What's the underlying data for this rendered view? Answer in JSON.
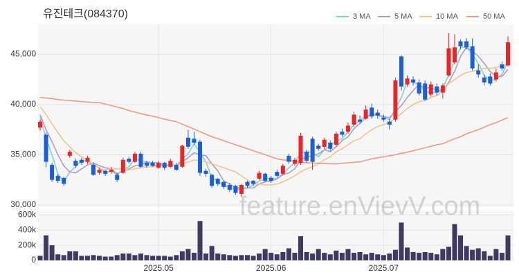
{
  "chart_data": {
    "type": "candlestick",
    "title": "유진테크(084370)",
    "watermark": "feature.enVievV.com",
    "up_color": "#e8262a",
    "down_color": "#1a5fd6",
    "grid": true,
    "legend": "top-right",
    "categories": [
      null,
      null,
      null,
      null,
      null,
      null,
      null,
      null,
      null,
      null,
      null,
      null,
      null,
      null,
      null,
      null,
      null,
      null,
      null,
      null,
      "2025.05",
      null,
      null,
      null,
      null,
      null,
      null,
      null,
      null,
      null,
      null,
      null,
      null,
      null,
      null,
      null,
      null,
      null,
      null,
      "2025.06",
      null,
      null,
      null,
      null,
      null,
      null,
      null,
      null,
      null,
      null,
      null,
      null,
      null,
      null,
      null,
      null,
      null,
      null,
      "2025.07",
      null,
      null,
      null,
      null,
      null,
      null,
      null,
      null,
      null,
      null,
      null,
      null,
      null,
      null,
      null,
      null,
      null,
      null,
      null,
      null,
      null
    ],
    "open": [
      37700,
      37000,
      34000,
      32900,
      32700,
      34900,
      34400,
      34500,
      34300,
      34000,
      33200,
      33400,
      33300,
      33000,
      33200,
      34600,
      34300,
      35100,
      34200,
      34200,
      33700,
      34200,
      33800,
      34000,
      33800,
      36700,
      36600,
      36300,
      33400,
      33000,
      32600,
      32300,
      32000,
      31900,
      31100,
      32300,
      32400,
      32600,
      33100,
      32700,
      33300,
      33100,
      34900,
      34100,
      34200,
      35300,
      36600,
      35900,
      35800,
      36200,
      36000,
      37300,
      37300,
      38000,
      38500,
      38600,
      39700,
      39200,
      38700,
      38300,
      38500,
      44800,
      42000,
      42500,
      42200,
      42100,
      41000,
      41800,
      41200,
      42900,
      44200,
      46300,
      46300,
      45800,
      43400,
      42700,
      42800,
      42500,
      44000,
      43900
    ],
    "high": [
      38500,
      37200,
      34200,
      33100,
      32800,
      35500,
      34600,
      34700,
      34900,
      34200,
      33700,
      33500,
      33800,
      33200,
      34700,
      34800,
      35300,
      35300,
      34400,
      34400,
      34400,
      34300,
      34600,
      34200,
      36000,
      37500,
      37300,
      36500,
      33600,
      33100,
      32700,
      32400,
      32200,
      32000,
      32100,
      32400,
      32500,
      33400,
      33200,
      32900,
      33500,
      34100,
      35100,
      34700,
      37200,
      35500,
      36800,
      36100,
      36700,
      36400,
      37300,
      37600,
      38200,
      39300,
      38900,
      39900,
      40100,
      39500,
      39000,
      38600,
      42700,
      44900,
      42900,
      42800,
      42500,
      42400,
      42300,
      42100,
      42100,
      47100,
      47000,
      46500,
      46600,
      46600,
      44000,
      43000,
      43100,
      43600,
      44300,
      46800
    ],
    "low": [
      37400,
      33800,
      32300,
      32200,
      31900,
      34700,
      33700,
      34000,
      34100,
      32900,
      33000,
      32900,
      33100,
      32300,
      33100,
      34100,
      34200,
      33700,
      33700,
      33800,
      33600,
      33500,
      33700,
      33400,
      33700,
      35600,
      36000,
      32900,
      32800,
      31700,
      31900,
      31600,
      31300,
      31000,
      30800,
      31700,
      31900,
      32500,
      32300,
      32200,
      32700,
      33000,
      34100,
      33900,
      34000,
      34200,
      33500,
      35400,
      35600,
      35400,
      35800,
      36800,
      37100,
      37800,
      38100,
      38500,
      38600,
      38600,
      38300,
      37500,
      38300,
      41400,
      41800,
      41900,
      40900,
      40400,
      40800,
      40900,
      40600,
      42800,
      44000,
      45500,
      45500,
      43400,
      42700,
      41900,
      41900,
      42300,
      43400,
      43800
    ],
    "close": [
      38300,
      34300,
      32500,
      32400,
      32100,
      35300,
      33900,
      34200,
      34700,
      33000,
      33500,
      33100,
      33500,
      32500,
      34500,
      34300,
      35100,
      33800,
      33900,
      33900,
      34200,
      33700,
      34400,
      33500,
      35900,
      35800,
      36200,
      33200,
      33100,
      31900,
      32100,
      31800,
      31500,
      31200,
      32000,
      31900,
      32100,
      33200,
      32400,
      32400,
      32900,
      33900,
      34300,
      34500,
      36900,
      34400,
      34300,
      35600,
      36500,
      35600,
      37100,
      37000,
      37900,
      39000,
      38300,
      39500,
      38800,
      38900,
      38500,
      38000,
      42400,
      41800,
      42600,
      42200,
      41100,
      40500,
      42000,
      41200,
      41900,
      45600,
      45700,
      45800,
      45700,
      43600,
      43000,
      42200,
      42100,
      43200,
      43600,
      46200
    ],
    "ylim": [
      30000,
      48000
    ],
    "yticks": [
      {
        "value": 30000,
        "label": "30,000"
      },
      {
        "value": 35000,
        "label": "35,000"
      },
      {
        "value": 40000,
        "label": "40,000"
      },
      {
        "value": 45000,
        "label": "45,000"
      }
    ],
    "series": [
      {
        "name": "3 MA",
        "color": "#7fd3cf",
        "values": [
          38800,
          36600,
          35000,
          33100,
          32300,
          33300,
          33800,
          34500,
          34300,
          34000,
          33700,
          33200,
          33400,
          33000,
          33500,
          33800,
          34600,
          34400,
          34300,
          33900,
          34000,
          33900,
          34100,
          33900,
          34600,
          35100,
          36100,
          35200,
          34300,
          32700,
          32400,
          31900,
          31800,
          31500,
          31600,
          31700,
          32000,
          32400,
          32600,
          32700,
          32600,
          33100,
          33700,
          34200,
          35200,
          35300,
          35200,
          34800,
          35500,
          35900,
          36400,
          36600,
          37300,
          38000,
          38400,
          38900,
          38900,
          39100,
          38700,
          38500,
          39600,
          40700,
          42300,
          42200,
          42000,
          41300,
          41200,
          41200,
          41700,
          42900,
          44400,
          45700,
          45700,
          45000,
          44100,
          42900,
          42400,
          42500,
          43000,
          44300
        ]
      },
      {
        "name": "5 MA",
        "color": "#b09bc7",
        "values": [
          39000,
          37500,
          36300,
          35000,
          33900,
          33300,
          33200,
          33600,
          34000,
          34200,
          33900,
          33700,
          33600,
          33100,
          33400,
          33600,
          33900,
          34000,
          34300,
          34200,
          34200,
          33900,
          34000,
          33900,
          34300,
          34700,
          35200,
          35000,
          34900,
          34100,
          33400,
          32400,
          32100,
          31700,
          31700,
          31700,
          31700,
          32100,
          32300,
          32400,
          32600,
          33000,
          33200,
          33600,
          34500,
          34800,
          34900,
          35100,
          35500,
          35300,
          35800,
          36400,
          36800,
          37600,
          38100,
          38700,
          39100,
          38900,
          38800,
          38700,
          39300,
          39900,
          40700,
          41400,
          42000,
          41600,
          41700,
          41400,
          41300,
          42200,
          43300,
          44800,
          45700,
          45300,
          44800,
          44100,
          43300,
          42800,
          42800,
          43500
        ]
      },
      {
        "name": "10 MA",
        "color": "#f2c48f",
        "values": [
          39800,
          39000,
          38100,
          37200,
          36400,
          35800,
          35200,
          34800,
          34400,
          34100,
          33600,
          33500,
          33600,
          33600,
          33600,
          33500,
          33600,
          33700,
          33800,
          33800,
          33900,
          33900,
          33900,
          34000,
          34100,
          34300,
          34500,
          34400,
          34300,
          34100,
          33900,
          33700,
          33500,
          33300,
          32900,
          32500,
          32100,
          32100,
          32000,
          32000,
          32100,
          32300,
          32600,
          32900,
          33300,
          33600,
          33800,
          34100,
          34500,
          34800,
          35300,
          35600,
          36000,
          36400,
          36600,
          37100,
          37500,
          37800,
          38000,
          38200,
          38700,
          39100,
          39600,
          40000,
          40300,
          40400,
          40700,
          40900,
          41300,
          42100,
          42500,
          42900,
          43200,
          43300,
          43500,
          43600,
          43600,
          43700,
          43900,
          44000
        ]
      },
      {
        "name": "50 MA",
        "color": "#f19a83",
        "values": [
          40700,
          40650,
          40600,
          40500,
          40450,
          40400,
          40350,
          40300,
          40250,
          40200,
          40200,
          40050,
          39900,
          39750,
          39600,
          39400,
          39250,
          39100,
          38950,
          38850,
          38700,
          38550,
          38400,
          38300,
          38050,
          37800,
          37550,
          37300,
          37050,
          36800,
          36600,
          36400,
          36200,
          36000,
          35800,
          35600,
          35400,
          35200,
          35000,
          34800,
          34600,
          34500,
          34450,
          34350,
          34250,
          34200,
          34180,
          34150,
          34130,
          34110,
          34100,
          34150,
          34200,
          34250,
          34300,
          34450,
          34600,
          34700,
          34800,
          34900,
          35000,
          35150,
          35250,
          35400,
          35550,
          35700,
          35850,
          36000,
          36100,
          36350,
          36600,
          36800,
          37100,
          37300,
          37500,
          37750,
          38000,
          38200,
          38450,
          38700
        ]
      }
    ],
    "volume": {
      "color": "#3d3b5f",
      "values": [
        60000,
        330000,
        200000,
        80000,
        70000,
        120000,
        120000,
        60000,
        60000,
        70000,
        60000,
        50000,
        50000,
        70000,
        90000,
        90000,
        70000,
        90000,
        70000,
        60000,
        60000,
        60000,
        50000,
        70000,
        120000,
        150000,
        100000,
        520000,
        90000,
        190000,
        90000,
        80000,
        70000,
        60000,
        70000,
        70000,
        60000,
        90000,
        150000,
        100000,
        80000,
        110000,
        160000,
        100000,
        320000,
        110000,
        90000,
        150000,
        100000,
        80000,
        130000,
        100000,
        150000,
        100000,
        110000,
        80000,
        100000,
        80000,
        70000,
        90000,
        140000,
        500000,
        170000,
        110000,
        100000,
        110000,
        100000,
        80000,
        150000,
        180000,
        480000,
        330000,
        190000,
        140000,
        160000,
        120000,
        60000,
        150000,
        100000,
        330000
      ],
      "ylim": [
        0,
        650000
      ],
      "yticks": [
        0,
        {
          "value": 200000,
          "label": "200k"
        },
        {
          "value": 400000,
          "label": "400k"
        },
        {
          "value": 600000,
          "label": "600k"
        }
      ]
    }
  }
}
